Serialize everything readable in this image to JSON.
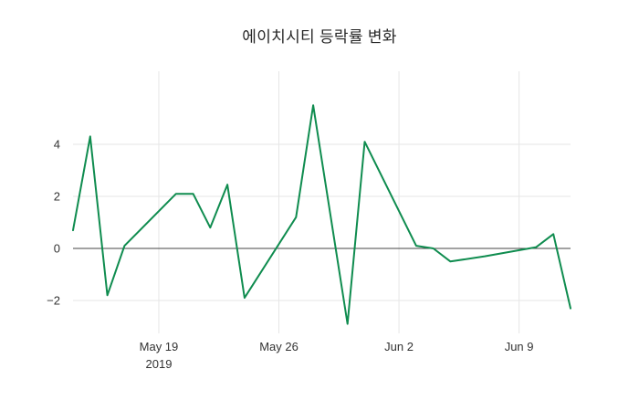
{
  "title": "에이치시티 등락률 변화",
  "chart_data": {
    "type": "line",
    "title": "에이치시티 등락률 변화",
    "xlabel": "",
    "ylabel": "",
    "legend": "none",
    "grid": "on",
    "line_color": "#0f8c4f",
    "grid_color": "#e6e6e6",
    "zeroline_color": "#444444",
    "text_color": "#333333",
    "background": "#ffffff",
    "ylim": [
      -3.3,
      6.2
    ],
    "x": [
      "2019-05-14",
      "2019-05-15",
      "2019-05-16",
      "2019-05-17",
      "2019-05-20",
      "2019-05-21",
      "2019-05-22",
      "2019-05-23",
      "2019-05-24",
      "2019-05-27",
      "2019-05-28",
      "2019-05-29",
      "2019-05-30",
      "2019-05-31",
      "2019-06-03",
      "2019-06-04",
      "2019-06-05",
      "2019-06-07",
      "2019-06-10",
      "2019-06-11",
      "2019-06-12"
    ],
    "values": [
      0.7,
      4.3,
      -1.8,
      0.1,
      2.1,
      2.1,
      0.8,
      2.45,
      -1.9,
      1.2,
      5.5,
      1.3,
      -2.9,
      4.1,
      0.1,
      0.0,
      -0.5,
      -0.3,
      0.05,
      0.55,
      -2.3
    ],
    "yticks": [
      {
        "value": 4,
        "label": "4"
      },
      {
        "value": 2,
        "label": "2"
      },
      {
        "value": 0,
        "label": "0"
      },
      {
        "value": -2,
        "label": "−2"
      }
    ],
    "xticks": [
      {
        "date": "2019-05-19",
        "label": "May 19",
        "sublabel": "2019"
      },
      {
        "date": "2019-05-26",
        "label": "May 26",
        "sublabel": ""
      },
      {
        "date": "2019-06-02",
        "label": "Jun 2",
        "sublabel": ""
      },
      {
        "date": "2019-06-09",
        "label": "Jun 9",
        "sublabel": ""
      }
    ]
  }
}
